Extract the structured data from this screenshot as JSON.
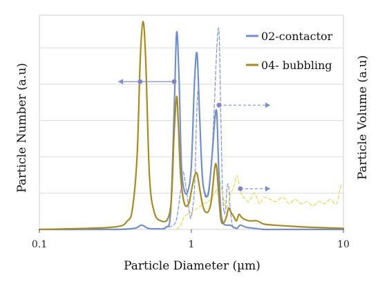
{
  "chart_data": {
    "type": "line",
    "xlabel": "Particle Diameter (µm)",
    "ylabel_left": "Particle Number (a.u)",
    "ylabel_right": "Particle Volume (a.u)",
    "x_scale": "log",
    "xlim": [
      0.1,
      10
    ],
    "x_ticks": [
      {
        "value": 0.1,
        "label": "0.1"
      },
      {
        "value": 1,
        "label": "1"
      },
      {
        "value": 10,
        "label": "10"
      }
    ],
    "ylim": [
      0,
      1
    ],
    "grid": true,
    "legend_position": "top-right",
    "series": [
      {
        "name": "02-contactor",
        "color": "#6f8fd2",
        "style": "solid",
        "axis": "left",
        "x": [
          0.1,
          0.3,
          0.42,
          0.47,
          0.52,
          0.6,
          0.68,
          0.73,
          0.77,
          0.8,
          0.83,
          0.86,
          0.9,
          0.95,
          1.0,
          1.05,
          1.09,
          1.13,
          1.18,
          1.24,
          1.3,
          1.37,
          1.43,
          1.47,
          1.51,
          1.56,
          1.62,
          1.7,
          1.8,
          1.9,
          2.0,
          2.1,
          2.3,
          2.6,
          3.0,
          4.0,
          10
        ],
        "y": [
          0.0,
          0.0,
          0.005,
          0.02,
          0.005,
          0.003,
          0.01,
          0.08,
          0.55,
          0.92,
          0.7,
          0.3,
          0.18,
          0.18,
          0.3,
          0.7,
          0.82,
          0.55,
          0.25,
          0.16,
          0.18,
          0.35,
          0.52,
          0.54,
          0.3,
          0.09,
          0.03,
          0.02,
          0.02,
          0.01,
          0.005,
          0.02,
          0.01,
          0.005,
          0.0,
          0.0,
          0.0
        ]
      },
      {
        "name": "04- bubbling",
        "color": "#a98a1a",
        "style": "solid",
        "axis": "left",
        "x": [
          0.1,
          0.3,
          0.38,
          0.41,
          0.44,
          0.46,
          0.48,
          0.5,
          0.53,
          0.57,
          0.63,
          0.7,
          0.74,
          0.77,
          0.8,
          0.82,
          0.85,
          0.9,
          0.96,
          1.0,
          1.05,
          1.09,
          1.14,
          1.2,
          1.28,
          1.35,
          1.42,
          1.46,
          1.5,
          1.56,
          1.63,
          1.7,
          1.76,
          1.82,
          1.9,
          1.98,
          2.05,
          2.12,
          2.2,
          2.4,
          2.7,
          3.0,
          3.5,
          4.5,
          6.0,
          10
        ],
        "y": [
          0.0,
          0.01,
          0.04,
          0.1,
          0.35,
          0.78,
          0.97,
          0.8,
          0.25,
          0.08,
          0.04,
          0.05,
          0.15,
          0.45,
          0.62,
          0.5,
          0.25,
          0.12,
          0.12,
          0.18,
          0.25,
          0.26,
          0.18,
          0.1,
          0.08,
          0.13,
          0.28,
          0.3,
          0.2,
          0.05,
          0.03,
          0.06,
          0.1,
          0.08,
          0.06,
          0.04,
          0.07,
          0.06,
          0.05,
          0.04,
          0.04,
          0.025,
          0.02,
          0.015,
          0.01,
          0.005
        ]
      },
      {
        "name": "",
        "color": "#7b8ed8",
        "style": "dashed",
        "axis": "right",
        "x": [
          0.6,
          0.7,
          0.76,
          0.8,
          0.85,
          0.88,
          0.92,
          0.97,
          1.0,
          1.05,
          1.08,
          1.11,
          1.15,
          1.2,
          1.25,
          1.32,
          1.4,
          1.47,
          1.52,
          1.56,
          1.6,
          1.64,
          1.68,
          1.72,
          1.76,
          1.8,
          1.85,
          1.9
        ],
        "y": [
          0.0,
          0.01,
          0.02,
          0.05,
          0.18,
          0.27,
          0.2,
          0.08,
          0.06,
          0.2,
          0.5,
          0.65,
          0.42,
          0.2,
          0.15,
          0.2,
          0.5,
          0.85,
          0.92,
          0.55,
          0.2,
          0.08,
          0.1,
          0.2,
          0.2,
          0.1,
          0.03,
          0.0
        ]
      },
      {
        "name": "",
        "color": "#e3dc3c",
        "style": "dashed",
        "axis": "right",
        "x": [
          0.8,
          0.85,
          0.9,
          1.0,
          1.1,
          1.2,
          1.3,
          1.4,
          1.5,
          1.55,
          1.6,
          1.7,
          1.8,
          1.9,
          2.0,
          2.1,
          2.2,
          2.4,
          2.6,
          2.8,
          3.0,
          3.3,
          3.6,
          4.0,
          4.4,
          4.8,
          5.3,
          5.8,
          6.3,
          6.9,
          7.5,
          8.2,
          9.0,
          9.6,
          10
        ],
        "y": [
          0.0,
          0.02,
          0.06,
          0.08,
          0.1,
          0.12,
          0.13,
          0.16,
          0.2,
          0.22,
          0.17,
          0.1,
          0.16,
          0.2,
          0.25,
          0.18,
          0.15,
          0.13,
          0.17,
          0.12,
          0.15,
          0.14,
          0.13,
          0.15,
          0.12,
          0.14,
          0.12,
          0.13,
          0.11,
          0.13,
          0.12,
          0.14,
          0.12,
          0.2,
          0.21
        ]
      }
    ],
    "annotations": [
      {
        "kind": "arrow",
        "direction": "left",
        "from_x": 0.77,
        "to_x": 0.33,
        "y": 0.69,
        "color": "#7b8ed8",
        "style": "solid"
      },
      {
        "kind": "marker",
        "x": 0.46,
        "y": 0.69,
        "color": "#7b8ed8"
      },
      {
        "kind": "marker",
        "x": 0.77,
        "y": 0.69,
        "color": "#7b8ed8"
      },
      {
        "kind": "arrow",
        "direction": "right",
        "from_x": 1.52,
        "to_x": 3.3,
        "y": 0.58,
        "color": "#7b8ed8",
        "style": "dashed"
      },
      {
        "kind": "marker",
        "x": 1.52,
        "y": 0.58,
        "color": "#7b8ed8"
      },
      {
        "kind": "arrow",
        "direction": "right",
        "from_x": 2.1,
        "to_x": 3.3,
        "y": 0.19,
        "color": "#7b8ed8",
        "style": "dashed"
      },
      {
        "kind": "marker",
        "x": 2.1,
        "y": 0.19,
        "color": "#7b8ed8"
      }
    ]
  }
}
